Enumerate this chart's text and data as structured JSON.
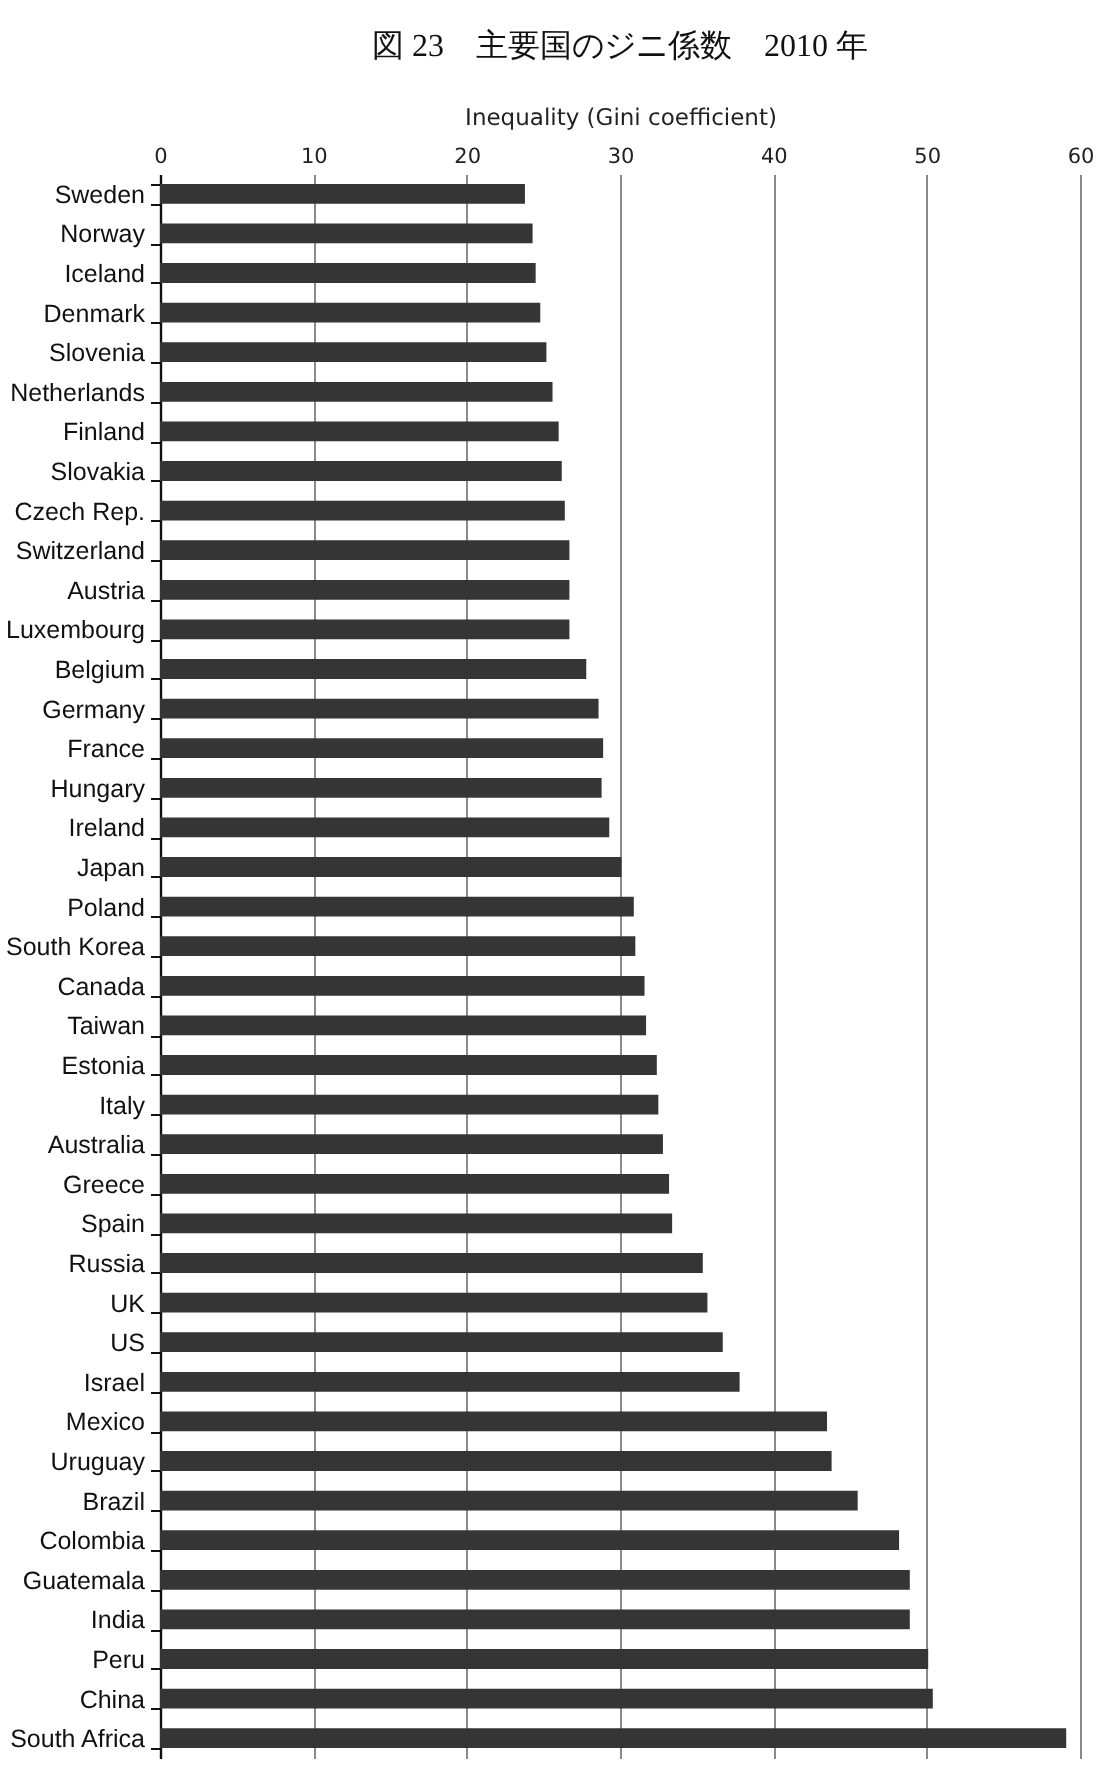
{
  "chart_data": {
    "type": "bar",
    "orientation": "horizontal",
    "title": "図 23　主要国のジニ係数　2010 年",
    "xlabel": "Inequality (Gini coefficient)",
    "categories": [
      "Sweden",
      "Norway",
      "Iceland",
      "Denmark",
      "Slovenia",
      "Netherlands",
      "Finland",
      "Slovakia",
      "Czech Rep.",
      "Switzerland",
      "Austria",
      "Luxembourg",
      "Belgium",
      "Germany",
      "France",
      "Hungary",
      "Ireland",
      "Japan",
      "Poland",
      "South Korea",
      "Canada",
      "Taiwan",
      "Estonia",
      "Italy",
      "Australia",
      "Greece",
      "Spain",
      "Russia",
      "UK",
      "US",
      "Israel",
      "Mexico",
      "Uruguay",
      "Brazil",
      "Colombia",
      "Guatemala",
      "India",
      "Peru",
      "China",
      "South Africa"
    ],
    "values": [
      23.8,
      24.3,
      24.5,
      24.8,
      25.2,
      25.6,
      26.0,
      26.2,
      26.4,
      26.7,
      26.7,
      26.7,
      27.8,
      28.6,
      28.9,
      28.8,
      29.3,
      30.1,
      30.9,
      31.0,
      31.6,
      31.7,
      32.4,
      32.5,
      32.8,
      33.2,
      33.4,
      35.4,
      35.7,
      36.7,
      37.8,
      43.5,
      43.8,
      45.5,
      48.2,
      48.9,
      48.9,
      50.1,
      50.4,
      59.1
    ],
    "color": "#353535",
    "xlim": [
      0,
      60
    ],
    "xticks": [
      0,
      10,
      20,
      30,
      40,
      50,
      60
    ],
    "grid": "x"
  }
}
